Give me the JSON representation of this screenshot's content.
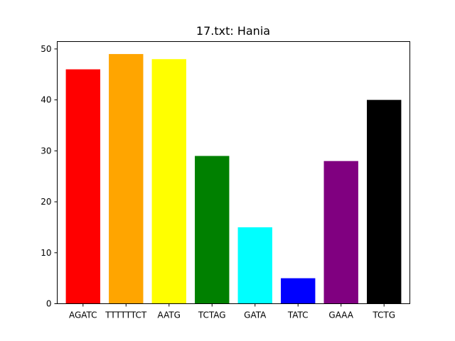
{
  "chart_data": {
    "type": "bar",
    "title": "17.txt: Hania",
    "xlabel": "",
    "ylabel": "",
    "categories": [
      "AGATC",
      "TTTTTTCT",
      "AATG",
      "TCTAG",
      "GATA",
      "TATC",
      "GAAA",
      "TCTG"
    ],
    "values": [
      46,
      49,
      48,
      29,
      15,
      5,
      28,
      40
    ],
    "colors": [
      "#ff0000",
      "#ffa500",
      "#ffff00",
      "#008000",
      "#00ffff",
      "#0000ff",
      "#800080",
      "#000000"
    ],
    "ylim": [
      0,
      51.45
    ],
    "yticks": [
      0,
      10,
      20,
      30,
      40,
      50
    ],
    "grid": false,
    "legend": "none"
  }
}
